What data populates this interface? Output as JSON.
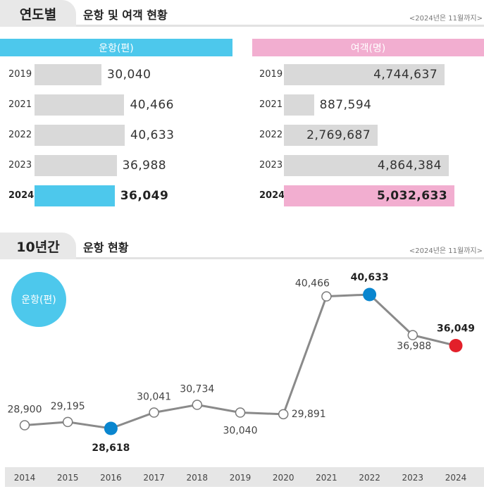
{
  "section1": {
    "tab": "연도별",
    "title": "운항 및 여객 현황",
    "note": "<2024년은 11월까지>",
    "flights_header": "운항(편)",
    "passengers_header": "여객(명)"
  },
  "section2": {
    "tab": "10년간",
    "title": "운항 현황",
    "note": "<2024년은 11월까지>",
    "badge": "운항(편)"
  },
  "colors": {
    "flights_accent": "#4dc8ec",
    "passengers_accent": "#f2aed0",
    "bar_grey": "#d9d9d9",
    "line": "#8a8a8a",
    "min_point": "#0a86cf",
    "max_point": "#0a86cf",
    "current_point": "#e3202a"
  },
  "chart_data": [
    {
      "type": "bar",
      "orientation": "horizontal",
      "title": "운항(편)",
      "categories": [
        "2019",
        "2021",
        "2022",
        "2023",
        "2024"
      ],
      "values": [
        30040,
        40466,
        40633,
        36988,
        36049
      ],
      "labels": [
        "30,040",
        "40,466",
        "40,633",
        "36,988",
        "36,049"
      ],
      "highlight": "2024"
    },
    {
      "type": "bar",
      "orientation": "horizontal",
      "title": "여객(명)",
      "categories": [
        "2019",
        "2021",
        "2022",
        "2023",
        "2024"
      ],
      "values": [
        4744637,
        887594,
        2769687,
        4864384,
        5032633
      ],
      "labels": [
        "4,744,637",
        "887,594",
        "2,769,687",
        "4,864,384",
        "5,032,633"
      ],
      "highlight": "2024"
    },
    {
      "type": "line",
      "title": "운항(편)",
      "x": [
        "2014",
        "2015",
        "2016",
        "2017",
        "2018",
        "2019",
        "2020",
        "2021",
        "2022",
        "2023",
        "2024"
      ],
      "values": [
        28900,
        29195,
        28618,
        30041,
        30734,
        30040,
        29891,
        40466,
        40633,
        36988,
        36049
      ],
      "labels": [
        "28,900",
        "29,195",
        "28,618",
        "30,041",
        "30,734",
        "30,040",
        "29,891",
        "40,466",
        "40,633",
        "36,988",
        "36,049"
      ],
      "highlight_min": "2016",
      "highlight_max": "2022",
      "highlight_current": "2024",
      "grid": false
    }
  ]
}
